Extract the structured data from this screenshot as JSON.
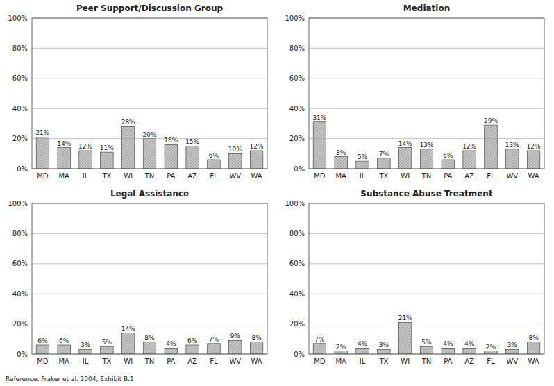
{
  "chart_data": [
    {
      "type": "bar",
      "title": "Peer Support/Discussion Group",
      "categories": [
        "MD",
        "MA",
        "IL",
        "TX",
        "WI",
        "TN",
        "PA",
        "AZ",
        "FL",
        "WV",
        "WA"
      ],
      "values": [
        21,
        14,
        12,
        11,
        28,
        20,
        16,
        15,
        6,
        10,
        12
      ],
      "value_labels": [
        "21%",
        "14%",
        "12%",
        "11%",
        "28%",
        "20%",
        "16%",
        "15%",
        "6%",
        "10%",
        "12%"
      ],
      "data_labels": true,
      "color": "#c8c8c8",
      "ylim": [
        0,
        100
      ],
      "yticks": [
        {
          "value": 0,
          "label": "0%"
        },
        {
          "value": 20,
          "label": "20%"
        },
        {
          "value": 40,
          "label": "40%"
        },
        {
          "value": 60,
          "label": "60%"
        },
        {
          "value": 80,
          "label": "80%"
        },
        {
          "value": 100,
          "label": "100%"
        }
      ],
      "grid": true
    },
    {
      "type": "bar",
      "title": "Mediation",
      "categories": [
        "MD",
        "MA",
        "IL",
        "TX",
        "WI",
        "TN",
        "PA",
        "AZ",
        "FL",
        "WV",
        "WA"
      ],
      "values": [
        31,
        8,
        5,
        7,
        14,
        13,
        6,
        12,
        29,
        13,
        12
      ],
      "value_labels": [
        "31%",
        "8%",
        "5%",
        "7%",
        "14%",
        "13%",
        "6%",
        "12%",
        "29%",
        "13%",
        "12%"
      ],
      "data_labels": true,
      "color": "#c8c8c8",
      "ylim": [
        0,
        100
      ],
      "yticks": [
        {
          "value": 0,
          "label": "0%"
        },
        {
          "value": 20,
          "label": "20%"
        },
        {
          "value": 40,
          "label": "40%"
        },
        {
          "value": 60,
          "label": "60%"
        },
        {
          "value": 80,
          "label": "80%"
        },
        {
          "value": 100,
          "label": "100%"
        }
      ],
      "grid": true
    },
    {
      "type": "bar",
      "title": "Legal Assistance",
      "categories": [
        "MD",
        "MA",
        "IL",
        "TX",
        "WI",
        "TN",
        "PA",
        "AZ",
        "FL",
        "WV",
        "WA"
      ],
      "values": [
        6,
        6,
        3,
        5,
        14,
        8,
        4,
        6,
        7,
        9,
        8
      ],
      "value_labels": [
        "6%",
        "6%",
        "3%",
        "5%",
        "14%",
        "8%",
        "4%",
        "6%",
        "7%",
        "9%",
        "8%"
      ],
      "data_labels": true,
      "color": "#c8c8c8",
      "ylim": [
        0,
        100
      ],
      "yticks": [
        {
          "value": 0,
          "label": "0%"
        },
        {
          "value": 20,
          "label": "20%"
        },
        {
          "value": 40,
          "label": "40%"
        },
        {
          "value": 60,
          "label": "60%"
        },
        {
          "value": 80,
          "label": "80%"
        },
        {
          "value": 100,
          "label": "100%"
        }
      ],
      "grid": true,
      "annotation": "Reference:  Fraker et al. 2004, Exhibit B.1"
    },
    {
      "type": "bar",
      "title": "Substance Abuse Treatment",
      "categories": [
        "MD",
        "MA",
        "IL",
        "TX",
        "WI",
        "TN",
        "PA",
        "AZ",
        "FL",
        "WV",
        "WA"
      ],
      "values": [
        7,
        2,
        4,
        3,
        21,
        5,
        4,
        4,
        2,
        3,
        8
      ],
      "value_labels": [
        "7%",
        "2%",
        "4%",
        "3%",
        "21%",
        "5%",
        "4%",
        "4%",
        "2%",
        "3%",
        "8%"
      ],
      "data_labels": true,
      "color": "#c8c8c8",
      "ylim": [
        0,
        100
      ],
      "yticks": [
        {
          "value": 0,
          "label": "0%"
        },
        {
          "value": 20,
          "label": "20%"
        },
        {
          "value": 40,
          "label": "40%"
        },
        {
          "value": 60,
          "label": "60%"
        },
        {
          "value": 80,
          "label": "80%"
        },
        {
          "value": 100,
          "label": "100%"
        }
      ],
      "grid": true
    }
  ]
}
